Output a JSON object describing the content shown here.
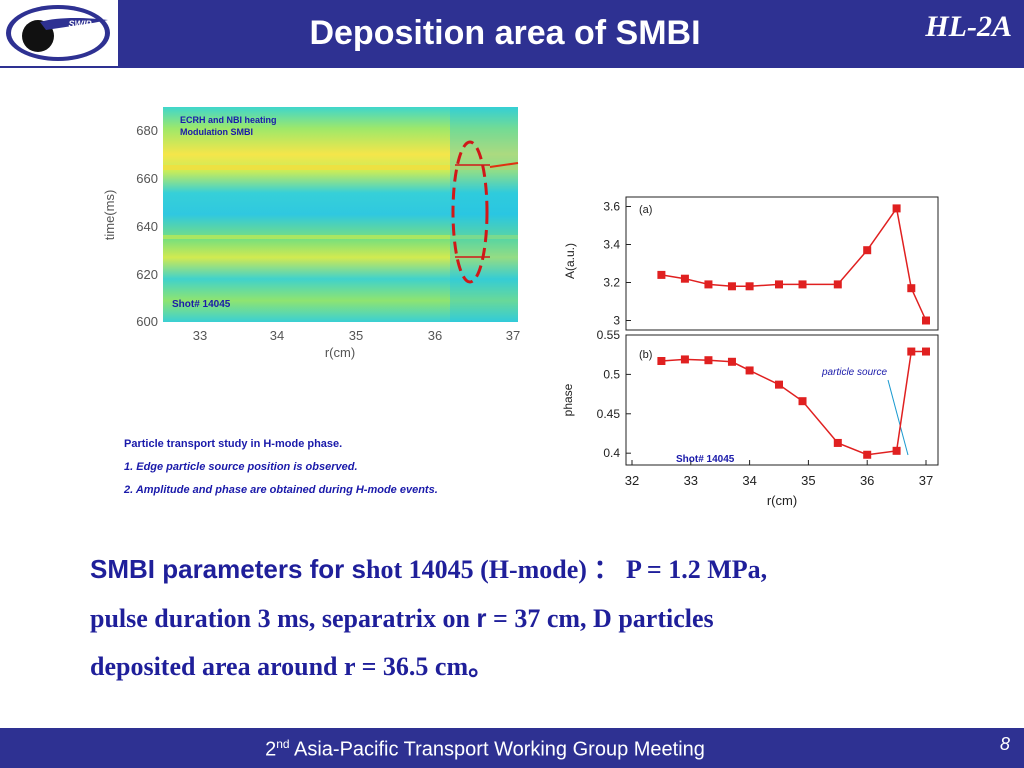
{
  "header": {
    "title": "Deposition area of SMBI",
    "brand": "HL-2A",
    "logo_text": "SWIP"
  },
  "contour_panel": {
    "legend_line1": "ECRH and NBI heating",
    "legend_line2": "Modulation SMBI",
    "shot_label": "Shot# 14045",
    "ylabel": "time(ms)",
    "xlabel": "r(cm)",
    "yticks": [
      "680",
      "660",
      "640",
      "620",
      "600"
    ],
    "xticks": [
      "33",
      "34",
      "35",
      "36",
      "37"
    ]
  },
  "notes": {
    "heading": "Particle transport study in H-mode phase.",
    "item1": "1.  Edge particle source position  is observed.",
    "item2": "2.  Amplitude and phase are obtained during  H-mode events."
  },
  "colors": {
    "header_bg": "#2e3192",
    "text_blue": "#1f1f9a",
    "series_red": "#e02020",
    "annotation_blue": "#1a1aaa"
  },
  "chart_data": [
    {
      "type": "line",
      "panel_label": "(a)",
      "ylabel": "A(a.u.)",
      "xlabel": "",
      "ylim": [
        2.95,
        3.65
      ],
      "yticks": [
        3,
        3.2,
        3.4,
        3.6
      ],
      "x": [
        32.5,
        32.9,
        33.3,
        33.7,
        34.0,
        34.5,
        34.9,
        35.5,
        36.0,
        36.5,
        36.75,
        37.0
      ],
      "series": [
        {
          "values": [
            3.24,
            3.22,
            3.19,
            3.18,
            3.18,
            3.19,
            3.19,
            3.19,
            3.37,
            3.59,
            3.17,
            3.0
          ]
        }
      ]
    },
    {
      "type": "line",
      "panel_label": "(b)",
      "ylabel": "phase",
      "xlabel": "r(cm)",
      "shot_label": "Shot# 14045",
      "annotation": "particle source",
      "xlim": [
        32,
        37
      ],
      "xticks": [
        32,
        33,
        34,
        35,
        36,
        37
      ],
      "ylim": [
        0.385,
        0.55
      ],
      "yticks": [
        0.4,
        0.45,
        0.5,
        0.55
      ],
      "x": [
        32.5,
        32.9,
        33.3,
        33.7,
        34.0,
        34.5,
        34.9,
        35.5,
        36.0,
        36.5,
        36.75,
        37.0
      ],
      "series": [
        {
          "values": [
            0.517,
            0.519,
            0.518,
            0.516,
            0.505,
            0.487,
            0.466,
            0.413,
            0.398,
            0.403,
            0.529,
            0.529
          ]
        }
      ]
    }
  ],
  "caption": {
    "part1": "SMBI parameters for s",
    "part2": "hot 14045 (H-mode) ：",
    "part3": "  P = 1.2 MPa,",
    "line2a": "pulse duration 3 ms, separatrix on ",
    "line2r": "r",
    "line2b": " = 37 cm, D particles",
    "line3": "deposited area  around r = 36.5 cm。"
  },
  "footer": {
    "ordinal_num": "2",
    "ordinal_sup": "nd",
    "text": " Asia-Pacific Transport Working Group Meeting",
    "page": "8"
  }
}
